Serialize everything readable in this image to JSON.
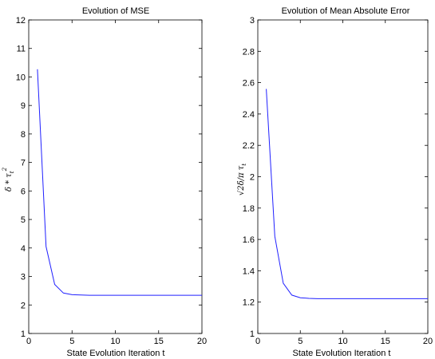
{
  "chart_data": [
    {
      "type": "line",
      "title": "Evolution of MSE",
      "xlabel": "State Evolution Iteration t",
      "ylabel": "δ * τ",
      "ylabel_sub": "t",
      "ylabel_sup": "2",
      "xlim": [
        0,
        20
      ],
      "ylim": [
        1,
        12
      ],
      "xticks": [
        0,
        5,
        10,
        15,
        20
      ],
      "yticks": [
        1,
        2,
        3,
        4,
        5,
        6,
        7,
        8,
        9,
        10,
        11,
        12
      ],
      "series": [
        {
          "color": "#2020ff",
          "x": [
            1,
            2,
            3,
            4,
            5,
            6,
            7,
            8,
            9,
            10,
            11,
            12,
            13,
            14,
            15,
            16,
            17,
            18,
            19,
            20
          ],
          "y": [
            10.27,
            4.05,
            2.72,
            2.42,
            2.36,
            2.35,
            2.34,
            2.34,
            2.34,
            2.34,
            2.34,
            2.34,
            2.34,
            2.34,
            2.34,
            2.34,
            2.34,
            2.34,
            2.34,
            2.34
          ]
        }
      ]
    },
    {
      "type": "line",
      "title": "Evolution of Mean Absolute Error",
      "xlabel": "State Evolution Iteration t",
      "ylabel": "√2δ/π  τ",
      "ylabel_sub": "t",
      "xlim": [
        0,
        20
      ],
      "ylim": [
        1,
        3
      ],
      "xticks": [
        0,
        5,
        10,
        15,
        20
      ],
      "yticks": [
        1,
        1.2,
        1.4,
        1.6,
        1.8,
        2,
        2.2,
        2.4,
        2.6,
        2.8,
        3
      ],
      "series": [
        {
          "color": "#2020ff",
          "x": [
            1,
            2,
            3,
            4,
            5,
            6,
            7,
            8,
            9,
            10,
            11,
            12,
            13,
            14,
            15,
            16,
            17,
            18,
            19,
            20
          ],
          "y": [
            2.56,
            1.62,
            1.32,
            1.245,
            1.228,
            1.224,
            1.222,
            1.222,
            1.222,
            1.222,
            1.222,
            1.222,
            1.222,
            1.222,
            1.222,
            1.222,
            1.222,
            1.222,
            1.222,
            1.222
          ]
        }
      ]
    }
  ]
}
